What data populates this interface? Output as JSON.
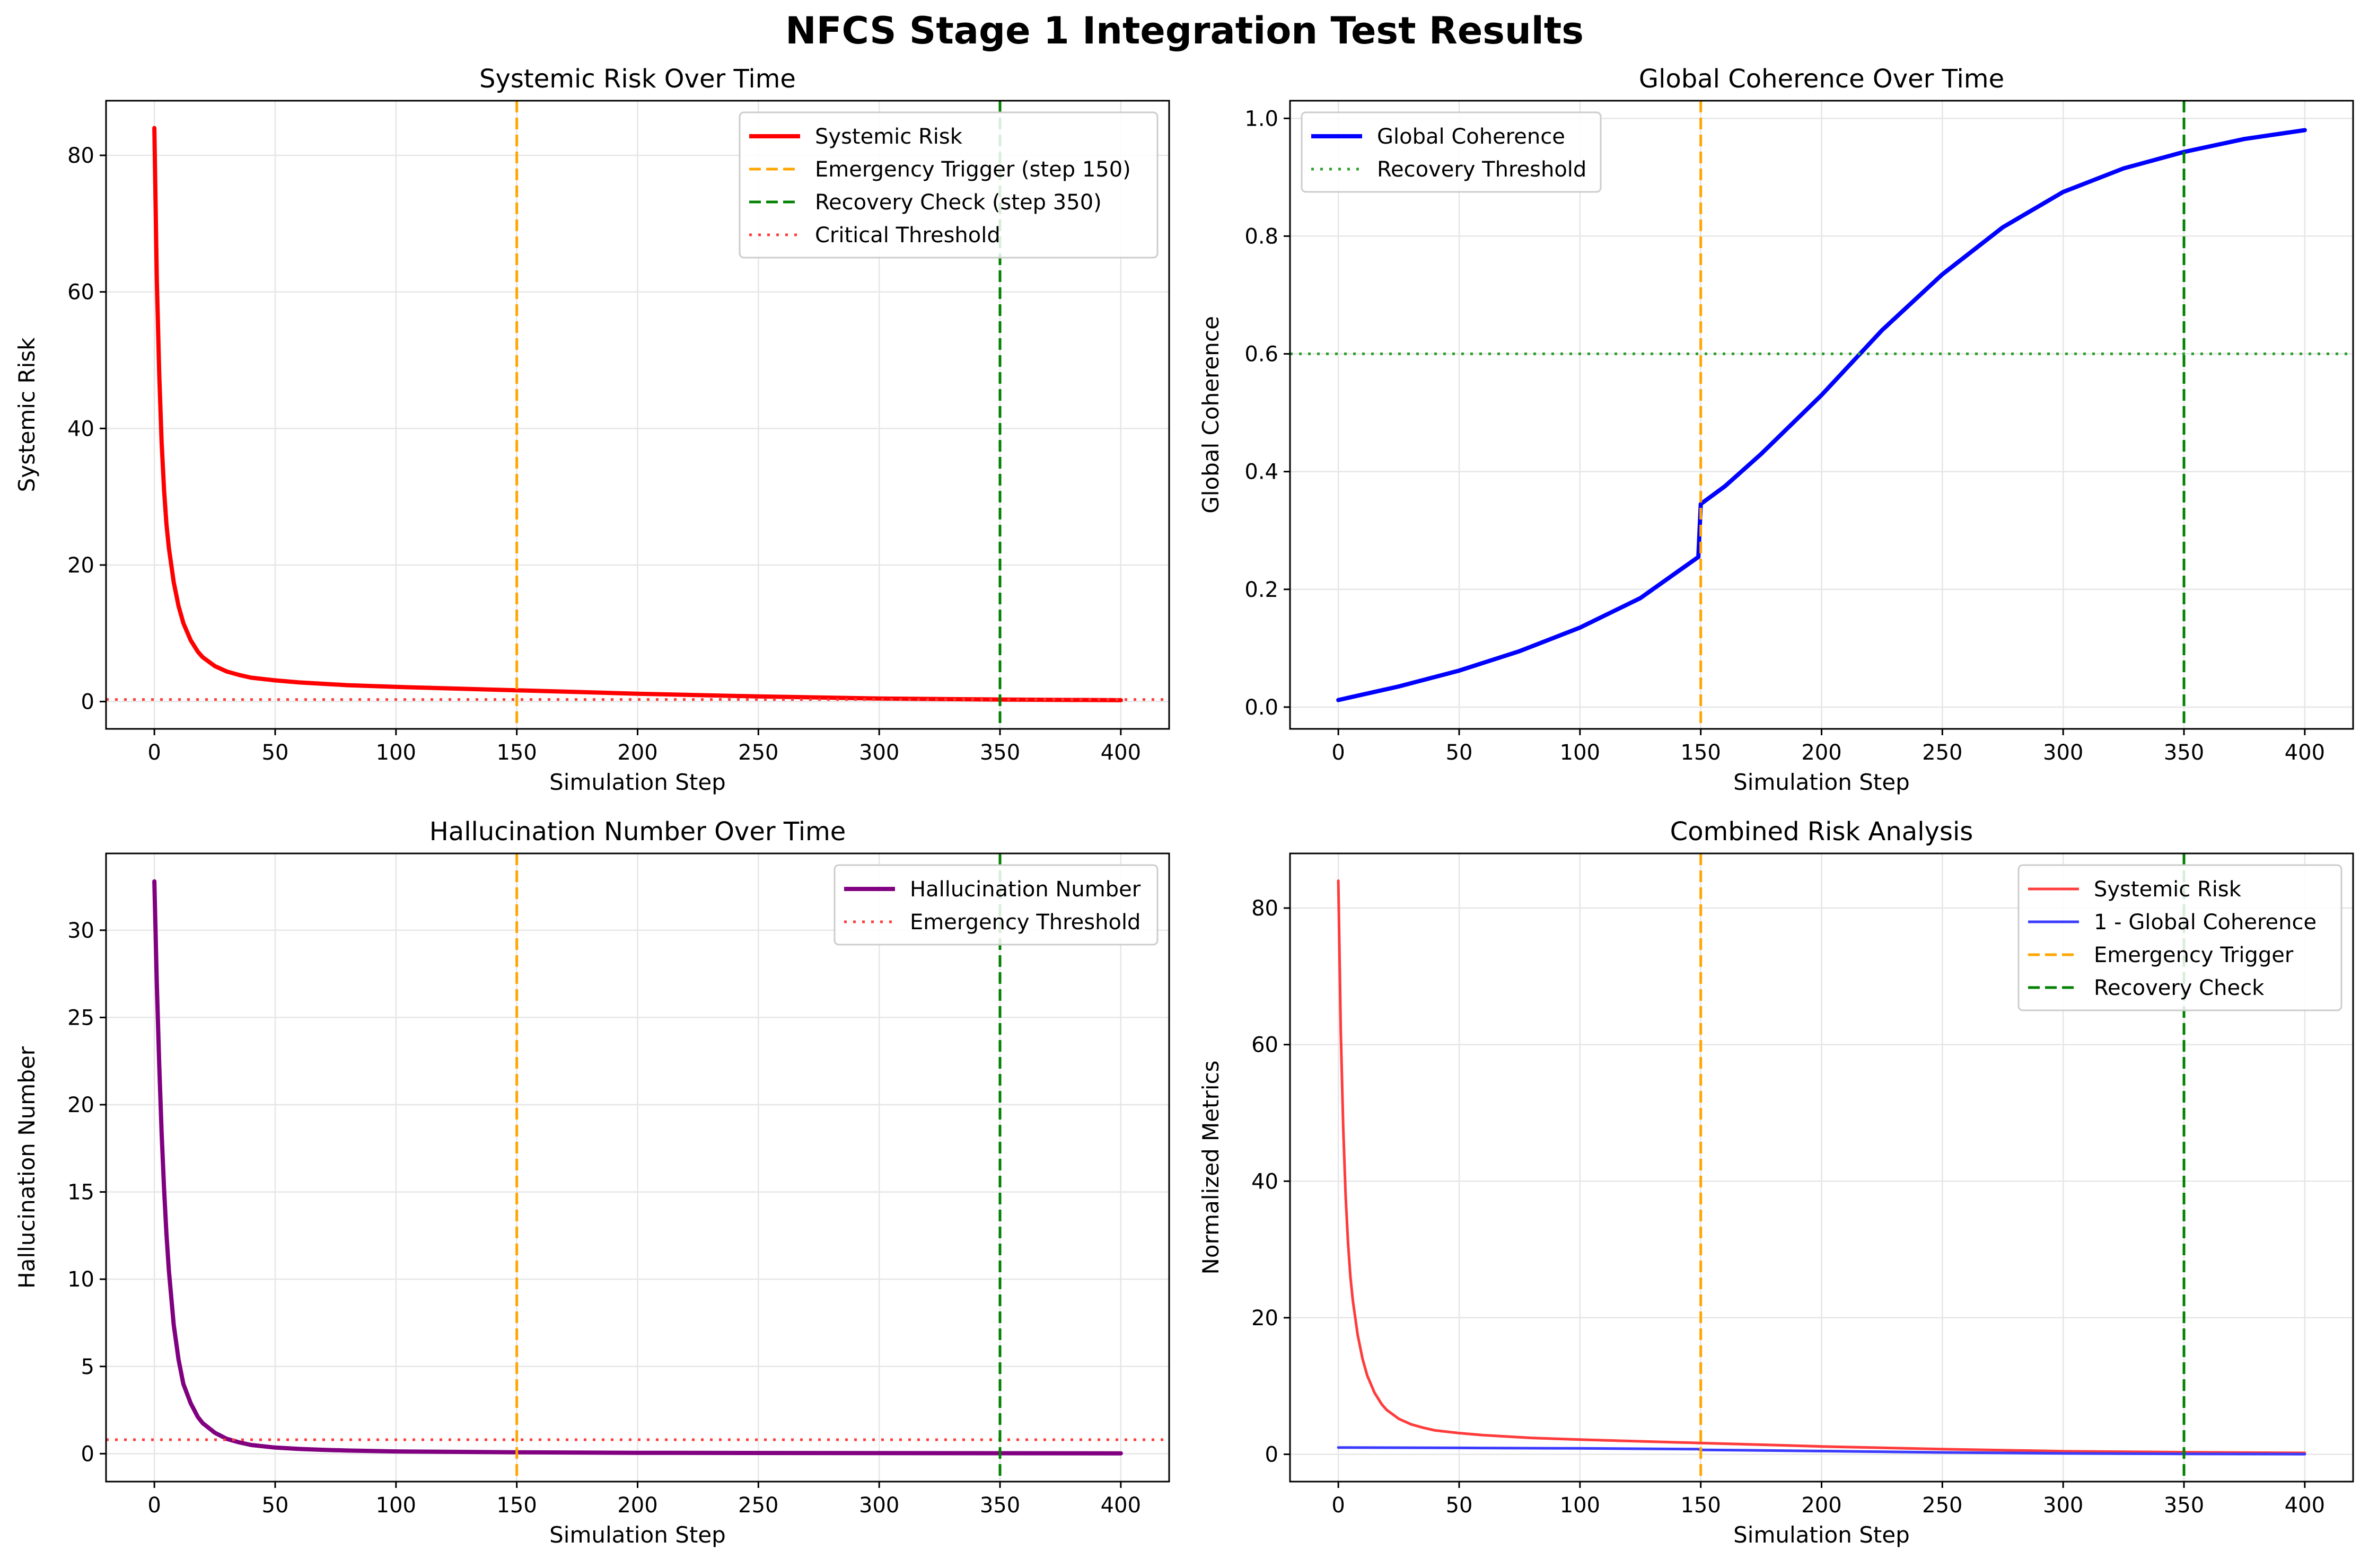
{
  "figure": {
    "title": "NFCS Stage 1 Integration Test Results"
  },
  "colors": {
    "risk": "#ff0000",
    "coherence": "#0000ff",
    "hallucination": "#800080",
    "emergency": "#ffa500",
    "recovery": "#008000",
    "critical": "#ff3b3b",
    "threshold_green": "#2ca02c",
    "grid": "#e6e6e6"
  },
  "chart_data": [
    {
      "id": "p1",
      "type": "line",
      "title": "Systemic Risk Over Time",
      "xlabel": "Simulation Step",
      "ylabel": "Systemic Risk",
      "xlim": [
        -20,
        420
      ],
      "ylim": [
        -4,
        88
      ],
      "xticks": [
        0,
        50,
        100,
        150,
        200,
        250,
        300,
        350,
        400
      ],
      "yticks": [
        0,
        20,
        40,
        60,
        80
      ],
      "grid": true,
      "legend_position": "top-right",
      "series": [
        {
          "name": "Systemic Risk",
          "color": "#ff0000",
          "width": 8,
          "x": [
            0,
            1,
            2,
            3,
            4,
            5,
            6,
            8,
            10,
            12,
            15,
            18,
            20,
            25,
            30,
            35,
            40,
            50,
            60,
            70,
            80,
            100,
            120,
            150,
            175,
            200,
            250,
            300,
            350,
            400
          ],
          "y": [
            84,
            62,
            48,
            38,
            31,
            26,
            22.5,
            17.5,
            14,
            11.5,
            9,
            7.3,
            6.5,
            5.2,
            4.4,
            3.9,
            3.5,
            3.1,
            2.8,
            2.6,
            2.4,
            2.15,
            1.95,
            1.65,
            1.4,
            1.15,
            0.75,
            0.45,
            0.3,
            0.2
          ]
        }
      ],
      "vlines": [
        {
          "name": "Emergency Trigger (step 150)",
          "x": 150,
          "color": "#ffa500",
          "dash": "dashed"
        },
        {
          "name": "Recovery Check (step 350)",
          "x": 350,
          "color": "#008000",
          "dash": "dashed"
        }
      ],
      "hlines": [
        {
          "name": "Critical Threshold",
          "y": 0.3,
          "color": "#ff3b3b",
          "dash": "dotted"
        }
      ]
    },
    {
      "id": "p2",
      "type": "line",
      "title": "Global Coherence Over Time",
      "xlabel": "Simulation Step",
      "ylabel": "Global Coherence",
      "xlim": [
        -20,
        420
      ],
      "ylim": [
        -0.037,
        1.03
      ],
      "xticks": [
        0,
        50,
        100,
        150,
        200,
        250,
        300,
        350,
        400
      ],
      "yticks": [
        0.0,
        0.2,
        0.4,
        0.6,
        0.8,
        1.0
      ],
      "ytick_format": "fixed1",
      "grid": true,
      "legend_position": "top-left",
      "series": [
        {
          "name": "Global Coherence",
          "color": "#0000ff",
          "width": 8,
          "x": [
            0,
            25,
            50,
            75,
            100,
            125,
            149,
            150,
            160,
            175,
            200,
            225,
            250,
            275,
            300,
            325,
            350,
            375,
            400
          ],
          "y": [
            0.012,
            0.035,
            0.062,
            0.095,
            0.135,
            0.185,
            0.255,
            0.345,
            0.375,
            0.43,
            0.53,
            0.64,
            0.735,
            0.815,
            0.875,
            0.915,
            0.943,
            0.965,
            0.98
          ]
        }
      ],
      "vlines": [
        {
          "x": 150,
          "color": "#ffa500",
          "dash": "dashed"
        },
        {
          "x": 350,
          "color": "#008000",
          "dash": "dashed"
        }
      ],
      "hlines": [
        {
          "name": "Recovery Threshold",
          "y": 0.6,
          "color": "#2ca02c",
          "dash": "dotted"
        }
      ]
    },
    {
      "id": "p3",
      "type": "line",
      "title": "Hallucination Number Over Time",
      "xlabel": "Simulation Step",
      "ylabel": "Hallucination Number",
      "xlim": [
        -20,
        420
      ],
      "ylim": [
        -1.6,
        34.4
      ],
      "xticks": [
        0,
        50,
        100,
        150,
        200,
        250,
        300,
        350,
        400
      ],
      "yticks": [
        0,
        5,
        10,
        15,
        20,
        25,
        30
      ],
      "grid": true,
      "legend_position": "top-right",
      "series": [
        {
          "name": "Hallucination Number",
          "color": "#800080",
          "width": 8,
          "x": [
            0,
            1,
            2,
            3,
            4,
            5,
            6,
            8,
            10,
            12,
            15,
            18,
            20,
            25,
            30,
            35,
            40,
            50,
            60,
            70,
            80,
            100,
            150,
            200,
            300,
            400
          ],
          "y": [
            32.8,
            27,
            22.3,
            18.4,
            15.2,
            12.6,
            10.5,
            7.4,
            5.4,
            4.0,
            2.9,
            2.1,
            1.75,
            1.2,
            0.85,
            0.65,
            0.5,
            0.35,
            0.27,
            0.22,
            0.18,
            0.13,
            0.08,
            0.05,
            0.03,
            0.02
          ]
        }
      ],
      "vlines": [
        {
          "x": 150,
          "color": "#ffa500",
          "dash": "dashed"
        },
        {
          "x": 350,
          "color": "#008000",
          "dash": "dashed"
        }
      ],
      "hlines": [
        {
          "name": "Emergency Threshold",
          "y": 0.8,
          "color": "#ff3b3b",
          "dash": "dotted"
        }
      ]
    },
    {
      "id": "p4",
      "type": "line",
      "title": "Combined Risk Analysis",
      "xlabel": "Simulation Step",
      "ylabel": "Normalized Metrics",
      "xlim": [
        -20,
        420
      ],
      "ylim": [
        -4,
        88
      ],
      "xticks": [
        0,
        50,
        100,
        150,
        200,
        250,
        300,
        350,
        400
      ],
      "yticks": [
        0,
        20,
        40,
        60,
        80
      ],
      "grid": true,
      "legend_position": "top-right",
      "series": [
        {
          "name": "Systemic Risk",
          "color": "#ff3b3b",
          "width": 5,
          "x": [
            0,
            1,
            2,
            3,
            4,
            5,
            6,
            8,
            10,
            12,
            15,
            18,
            20,
            25,
            30,
            35,
            40,
            50,
            60,
            70,
            80,
            100,
            120,
            150,
            175,
            200,
            250,
            300,
            350,
            400
          ],
          "y": [
            84,
            62,
            48,
            38,
            31,
            26,
            22.5,
            17.5,
            14,
            11.5,
            9,
            7.3,
            6.5,
            5.2,
            4.4,
            3.9,
            3.5,
            3.1,
            2.8,
            2.6,
            2.4,
            2.15,
            1.95,
            1.65,
            1.4,
            1.15,
            0.75,
            0.45,
            0.3,
            0.2
          ]
        },
        {
          "name": "1 - Global Coherence",
          "color": "#3b3bff",
          "width": 5,
          "x": [
            0,
            50,
            100,
            149,
            150,
            200,
            250,
            300,
            350,
            400
          ],
          "y": [
            0.99,
            0.94,
            0.87,
            0.75,
            0.65,
            0.47,
            0.27,
            0.13,
            0.06,
            0.02
          ]
        }
      ],
      "vlines": [
        {
          "name": "Emergency Trigger",
          "x": 150,
          "color": "#ffa500",
          "dash": "dashed"
        },
        {
          "name": "Recovery Check",
          "x": 350,
          "color": "#008000",
          "dash": "dashed"
        }
      ],
      "hlines": []
    }
  ]
}
